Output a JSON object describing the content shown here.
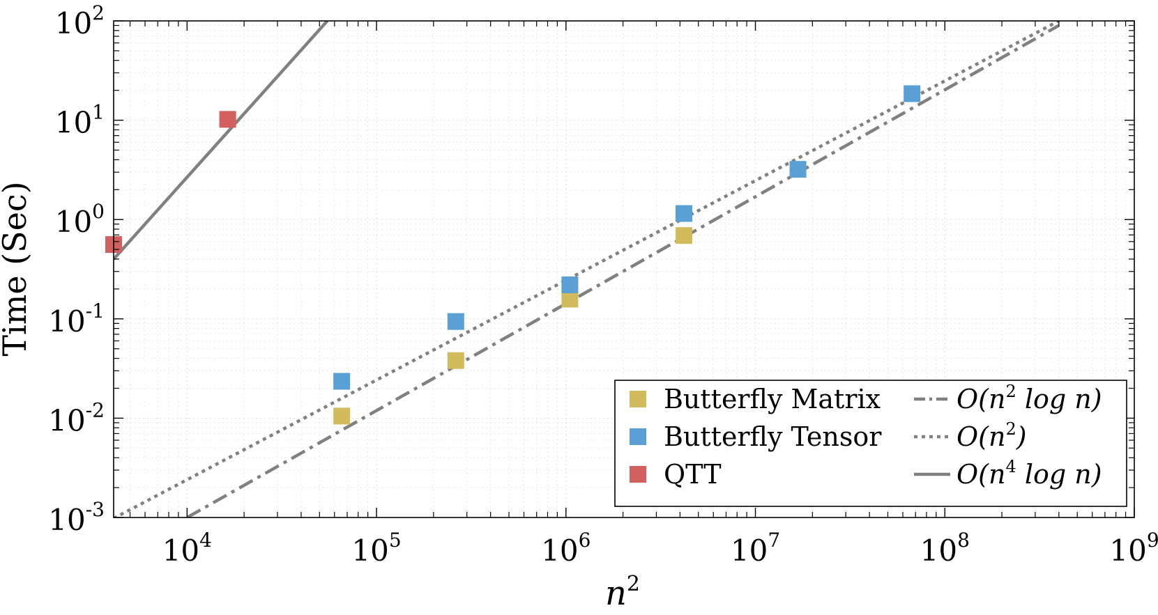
{
  "chart_data": {
    "type": "scatter",
    "x_scale": "log",
    "y_scale": "log",
    "xlim": [
      4096,
      1000000000
    ],
    "ylim": [
      0.001,
      100
    ],
    "xlabel": {
      "base": "n",
      "sup": "2"
    },
    "ylabel": "Time (Sec)",
    "x_ticks": [
      {
        "value": 10000,
        "base": "10",
        "exp": "4"
      },
      {
        "value": 100000,
        "base": "10",
        "exp": "5"
      },
      {
        "value": 1000000,
        "base": "10",
        "exp": "6"
      },
      {
        "value": 10000000,
        "base": "10",
        "exp": "7"
      },
      {
        "value": 100000000,
        "base": "10",
        "exp": "8"
      },
      {
        "value": 1000000000,
        "base": "10",
        "exp": "9"
      }
    ],
    "y_ticks": [
      {
        "value": 0.001,
        "base": "10",
        "exp": "-3"
      },
      {
        "value": 0.01,
        "base": "10",
        "exp": "-2"
      },
      {
        "value": 0.1,
        "base": "10",
        "exp": "-1"
      },
      {
        "value": 1,
        "base": "10",
        "exp": "0"
      },
      {
        "value": 10,
        "base": "10",
        "exp": "1"
      },
      {
        "value": 100,
        "base": "10",
        "exp": "2"
      }
    ],
    "grid": true,
    "legend_position": "bottom-right",
    "scatter_series": [
      {
        "name": "Butterfly Matrix",
        "color": "#d2bb5c",
        "points": [
          [
            65536,
            0.0105
          ],
          [
            262144,
            0.038
          ],
          [
            1048576,
            0.158
          ],
          [
            4194304,
            0.69
          ]
        ]
      },
      {
        "name": "Butterfly Tensor",
        "color": "#5aa0d4",
        "points": [
          [
            65536,
            0.0235
          ],
          [
            262144,
            0.094
          ],
          [
            1048576,
            0.22
          ],
          [
            4194304,
            1.15
          ],
          [
            16777216,
            3.2
          ],
          [
            67108864,
            18.5
          ]
        ]
      },
      {
        "name": "QTT",
        "color": "#d45f5f",
        "points": [
          [
            4096,
            0.56
          ],
          [
            16384,
            10.2
          ]
        ]
      }
    ],
    "line_series": [
      {
        "name": "O(n^2 log n)",
        "label_parts": {
          "pre": "O(n",
          "sup": "2",
          "post": " log n)"
        },
        "style": "dashed",
        "color": "#808080",
        "points": [
          [
            10000,
            0.001
          ],
          [
            400000000,
            90
          ]
        ]
      },
      {
        "name": "O(n^2)",
        "label_parts": {
          "pre": "O(n",
          "sup": "2",
          "post": ")"
        },
        "style": "dotted",
        "color": "#808080",
        "points": [
          [
            4096,
            0.00098
          ],
          [
            400000000,
            100
          ]
        ]
      },
      {
        "name": "O(n^4 log n)",
        "label_parts": {
          "pre": "O(n",
          "sup": "4",
          "post": " log n)"
        },
        "style": "solid",
        "color": "#808080",
        "points": [
          [
            4096,
            0.4
          ],
          [
            55000,
            100
          ]
        ]
      }
    ]
  }
}
